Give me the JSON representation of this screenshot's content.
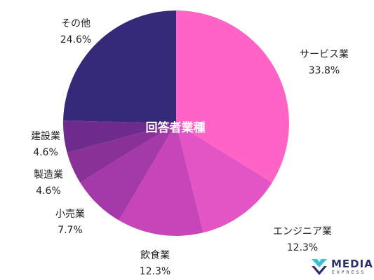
{
  "chart_data": {
    "type": "pie",
    "title": "回答者業種",
    "slices": [
      {
        "label": "サービス業",
        "value": 33.8,
        "display": "33.8%",
        "color": "#ff63c6"
      },
      {
        "label": "エンジニア業",
        "value": 12.3,
        "display": "12.3%",
        "color": "#e354c4"
      },
      {
        "label": "飲食業",
        "value": 12.3,
        "display": "12.3%",
        "color": "#c646ba"
      },
      {
        "label": "小売業",
        "value": 7.7,
        "display": "7.7%",
        "color": "#a33aa8"
      },
      {
        "label": "製造業",
        "value": 4.6,
        "display": "4.6%",
        "color": "#8a3198"
      },
      {
        "label": "建設業",
        "value": 4.6,
        "display": "4.6%",
        "color": "#6e2c8c"
      },
      {
        "label": "その他",
        "value": 24.6,
        "display": "24.6%",
        "color": "#35297a"
      }
    ],
    "start": "12 o'clock",
    "direction": "clockwise"
  },
  "logo": {
    "name": "MEDIA",
    "sub": "EXPRESS",
    "colors": {
      "mark": "#3dc0d6",
      "text": "#2b2f6b"
    }
  }
}
